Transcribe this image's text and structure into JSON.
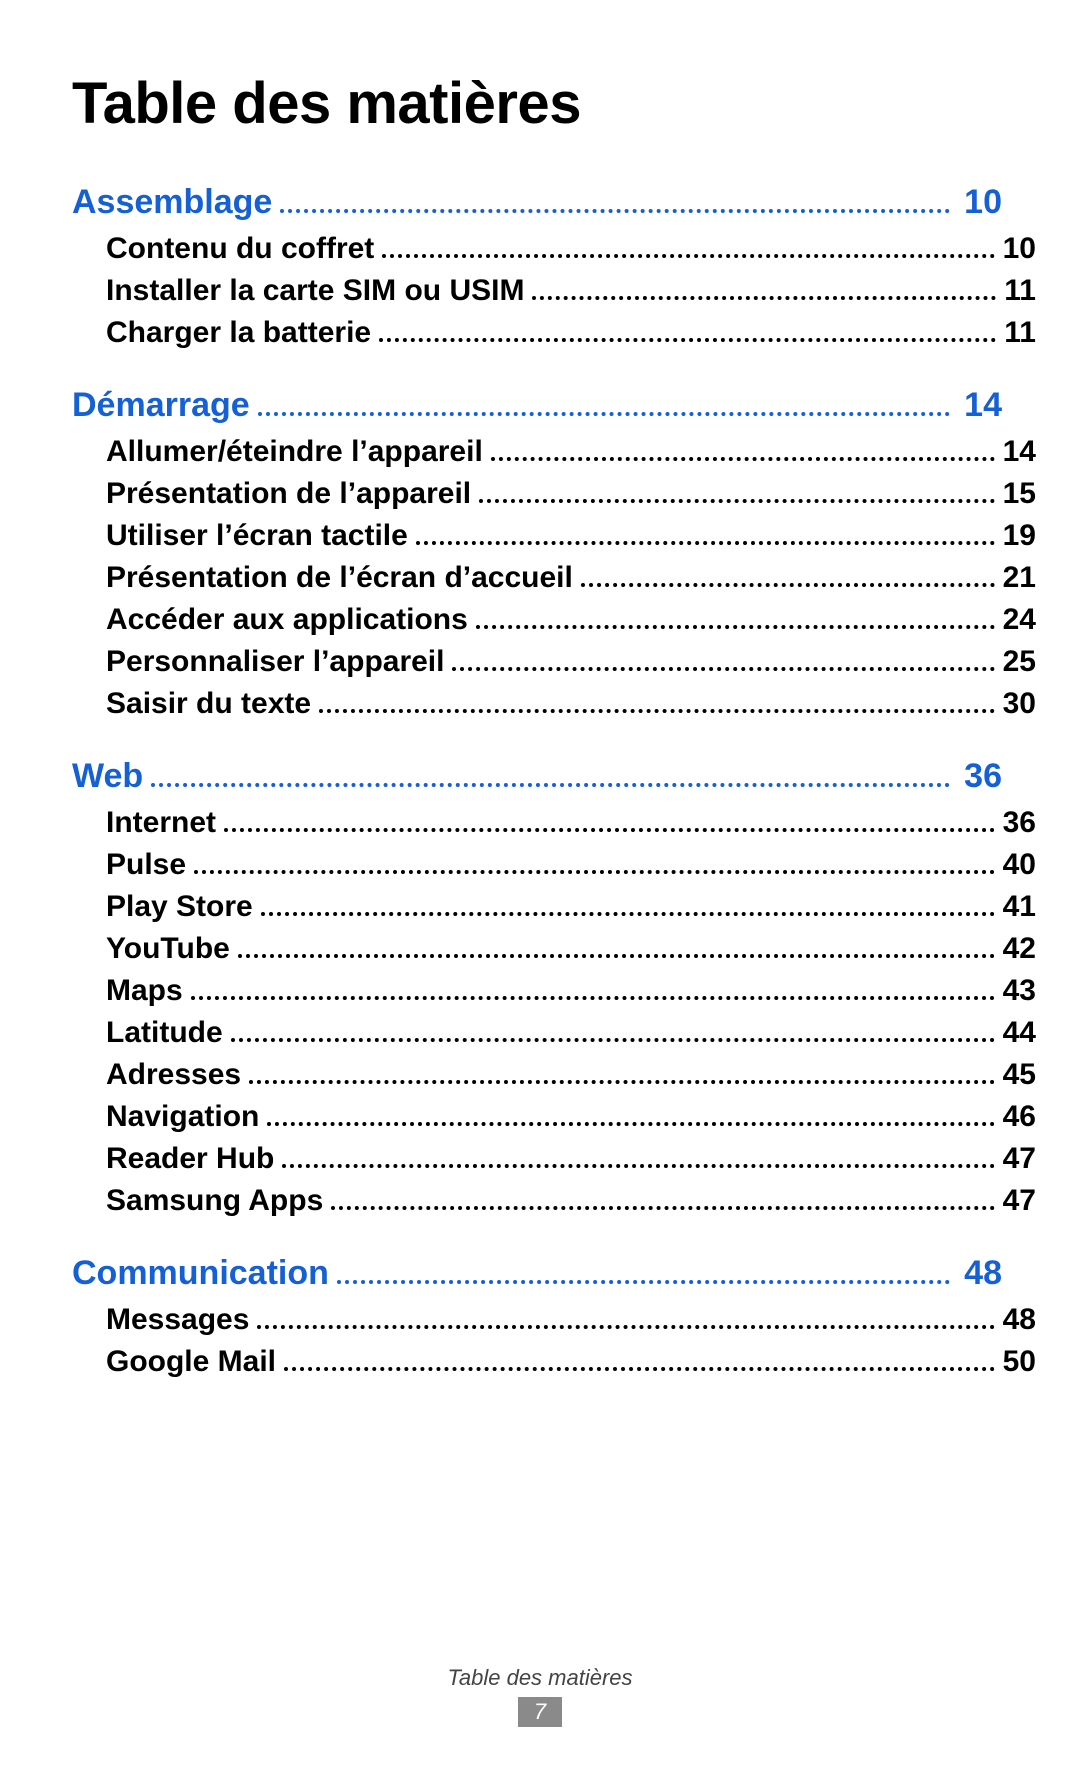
{
  "title": "Table des matières",
  "colors": {
    "section": "#1560d4",
    "text": "#000000",
    "page_badge_bg": "#8a8a8a",
    "page_badge_text": "#ffffff",
    "background": "#ffffff"
  },
  "sections": [
    {
      "label": "Assemblage",
      "page": "10",
      "subs": [
        {
          "label": "Contenu du coffret",
          "page": "10"
        },
        {
          "label": "Installer la carte SIM ou USIM",
          "page": "11"
        },
        {
          "label": "Charger la batterie",
          "page": "11"
        }
      ]
    },
    {
      "label": "Démarrage",
      "page": "14",
      "subs": [
        {
          "label": "Allumer/éteindre l’appareil",
          "page": "14"
        },
        {
          "label": "Présentation de l’appareil",
          "page": "15"
        },
        {
          "label": "Utiliser l’écran tactile",
          "page": "19"
        },
        {
          "label": "Présentation de l’écran d’accueil",
          "page": "21"
        },
        {
          "label": "Accéder aux applications",
          "page": "24"
        },
        {
          "label": "Personnaliser l’appareil",
          "page": "25"
        },
        {
          "label": "Saisir du texte",
          "page": "30"
        }
      ]
    },
    {
      "label": "Web",
      "page": "36",
      "subs": [
        {
          "label": "Internet",
          "page": "36"
        },
        {
          "label": "Pulse",
          "page": "40"
        },
        {
          "label": "Play Store",
          "page": "41"
        },
        {
          "label": "YouTube",
          "page": "42"
        },
        {
          "label": "Maps",
          "page": "43"
        },
        {
          "label": "Latitude",
          "page": "44"
        },
        {
          "label": "Adresses",
          "page": "45"
        },
        {
          "label": "Navigation",
          "page": "46"
        },
        {
          "label": "Reader Hub",
          "page": "47"
        },
        {
          "label": "Samsung Apps",
          "page": "47"
        }
      ]
    },
    {
      "label": "Communication",
      "page": "48",
      "subs": [
        {
          "label": "Messages",
          "page": "48"
        },
        {
          "label": "Google Mail",
          "page": "50"
        }
      ]
    }
  ],
  "footer": {
    "text": "Table des matières",
    "page_number": "7"
  }
}
